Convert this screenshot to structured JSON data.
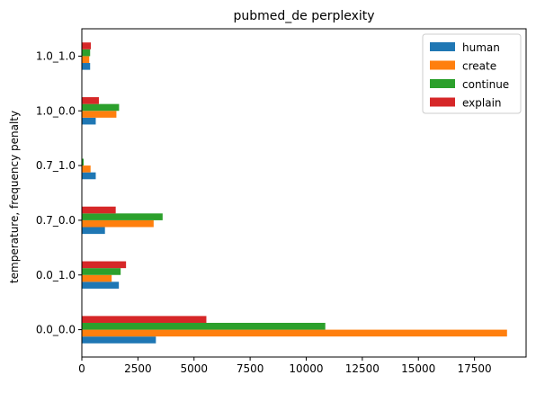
{
  "chart_data": {
    "type": "bar",
    "orientation": "horizontal",
    "title": "pubmed_de perplexity",
    "xlabel": "",
    "ylabel": "temperature, frequency penalty",
    "categories": [
      "0.0_0.0",
      "0.0_1.0",
      "0.7_0.0",
      "0.7_1.0",
      "1.0_0.0",
      "1.0_1.0"
    ],
    "series": [
      {
        "name": "human",
        "color": "#1f77b4",
        "values": [
          3300,
          1650,
          1030,
          620,
          620,
          370
        ]
      },
      {
        "name": "create",
        "color": "#ff7f0e",
        "values": [
          18950,
          1330,
          3200,
          390,
          1540,
          330
        ]
      },
      {
        "name": "continue",
        "color": "#2ca02c",
        "values": [
          10850,
          1730,
          3600,
          80,
          1660,
          370
        ]
      },
      {
        "name": "explain",
        "color": "#d62728",
        "values": [
          5550,
          1970,
          1510,
          20,
          760,
          400
        ]
      }
    ],
    "xlim": [
      0,
      19800
    ],
    "xticks": [
      0,
      2500,
      5000,
      7500,
      10000,
      12500,
      15000,
      17500
    ],
    "xtick_labels": [
      "0",
      "2500",
      "5000",
      "7500",
      "10000",
      "12500",
      "15000",
      "17500"
    ],
    "grid": false,
    "legend_position": "upper-right"
  }
}
